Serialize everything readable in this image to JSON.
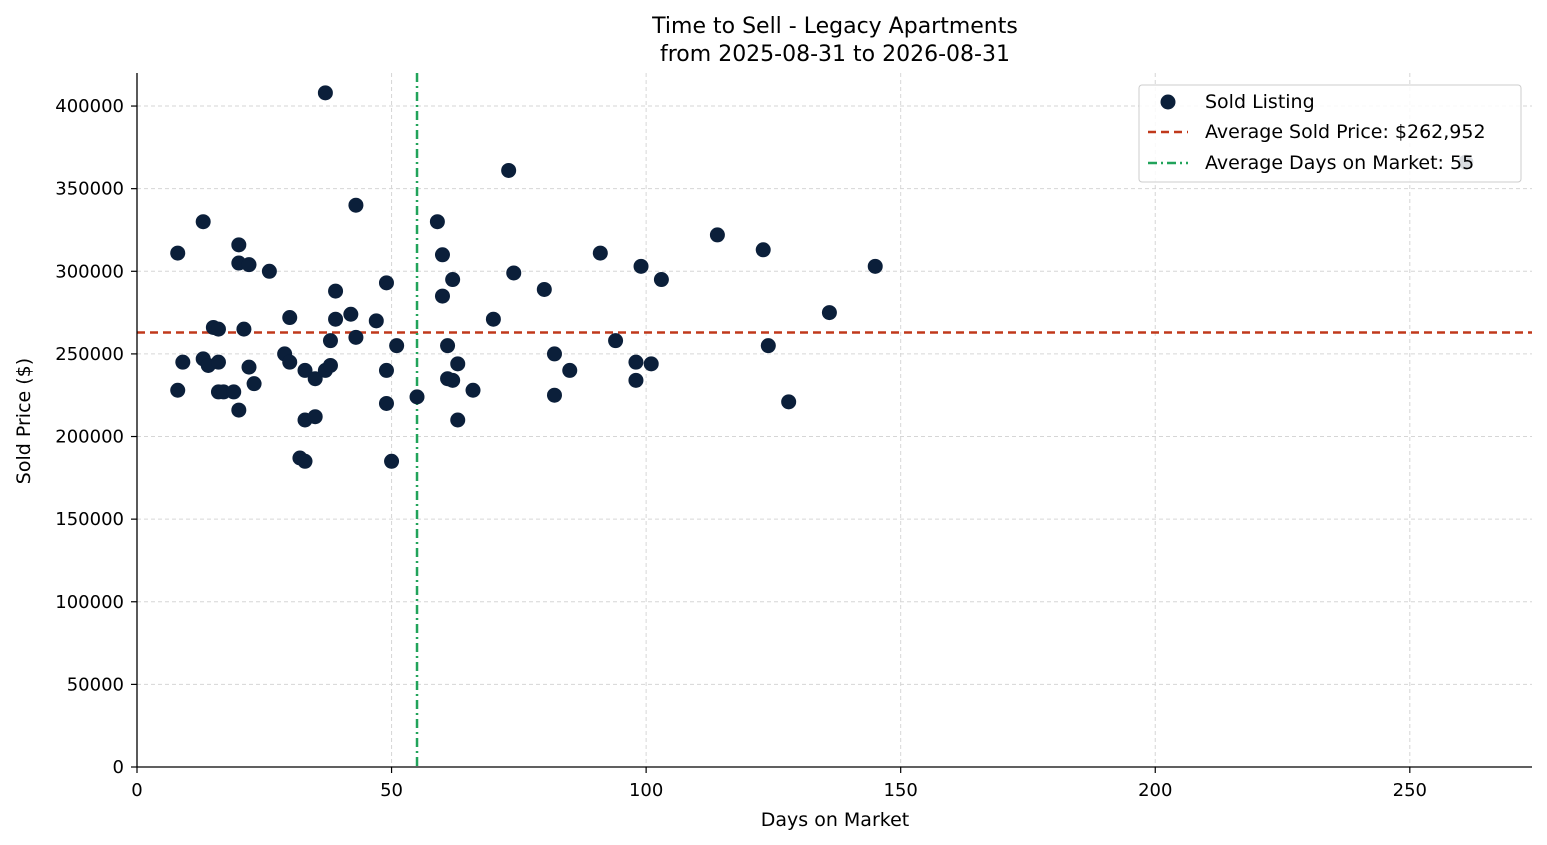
{
  "colors": {
    "points": "#0b1f3a",
    "avg_price_line": "#c0391b",
    "avg_days_line": "#21a35a",
    "grid": "#d6d6d6",
    "axis": "#000000"
  },
  "chart_data": {
    "type": "scatter",
    "title": "Time to Sell - Legacy Apartments",
    "subtitle": "from 2025-08-31 to 2026-08-31",
    "xlabel": "Days on Market",
    "ylabel": "Sold Price ($)",
    "xlim": [
      0,
      274
    ],
    "ylim": [
      0,
      420000
    ],
    "xticks": [
      0,
      50,
      100,
      150,
      200,
      250
    ],
    "yticks": [
      0,
      50000,
      100000,
      150000,
      200000,
      250000,
      300000,
      350000,
      400000
    ],
    "grid": true,
    "legend_position": "top-right",
    "legend": {
      "points_label": "Sold Listing",
      "avg_price_label": "Average Sold Price: $262,952",
      "avg_days_label": "Average Days on Market: 55"
    },
    "average_sold_price": 262952,
    "average_days_on_market": 55,
    "series": [
      {
        "name": "Sold Listing",
        "points": [
          [
            8,
            311000
          ],
          [
            8,
            228000
          ],
          [
            9,
            245000
          ],
          [
            13,
            330000
          ],
          [
            13,
            247000
          ],
          [
            14,
            243000
          ],
          [
            15,
            266000
          ],
          [
            16,
            265000
          ],
          [
            16,
            245000
          ],
          [
            16,
            227000
          ],
          [
            17,
            227000
          ],
          [
            19,
            227000
          ],
          [
            20,
            316000
          ],
          [
            20,
            305000
          ],
          [
            20,
            216000
          ],
          [
            21,
            265000
          ],
          [
            22,
            304000
          ],
          [
            22,
            242000
          ],
          [
            23,
            232000
          ],
          [
            26,
            300000
          ],
          [
            29,
            250000
          ],
          [
            30,
            272000
          ],
          [
            30,
            245000
          ],
          [
            32,
            187000
          ],
          [
            33,
            185000
          ],
          [
            33,
            210000
          ],
          [
            33,
            240000
          ],
          [
            35,
            235000
          ],
          [
            35,
            212000
          ],
          [
            37,
            240000
          ],
          [
            37,
            408000
          ],
          [
            38,
            258000
          ],
          [
            38,
            243000
          ],
          [
            39,
            288000
          ],
          [
            39,
            271000
          ],
          [
            42,
            274000
          ],
          [
            43,
            260000
          ],
          [
            43,
            340000
          ],
          [
            47,
            270000
          ],
          [
            49,
            293000
          ],
          [
            49,
            240000
          ],
          [
            49,
            220000
          ],
          [
            50,
            185000
          ],
          [
            51,
            255000
          ],
          [
            55,
            224000
          ],
          [
            59,
            330000
          ],
          [
            60,
            310000
          ],
          [
            60,
            285000
          ],
          [
            61,
            255000
          ],
          [
            61,
            235000
          ],
          [
            62,
            295000
          ],
          [
            62,
            234000
          ],
          [
            63,
            244000
          ],
          [
            63,
            210000
          ],
          [
            66,
            228000
          ],
          [
            70,
            271000
          ],
          [
            73,
            361000
          ],
          [
            74,
            299000
          ],
          [
            80,
            289000
          ],
          [
            82,
            250000
          ],
          [
            82,
            225000
          ],
          [
            85,
            240000
          ],
          [
            91,
            311000
          ],
          [
            94,
            258000
          ],
          [
            98,
            245000
          ],
          [
            98,
            234000
          ],
          [
            99,
            303000
          ],
          [
            101,
            244000
          ],
          [
            103,
            295000
          ],
          [
            114,
            322000
          ],
          [
            123,
            313000
          ],
          [
            124,
            255000
          ],
          [
            128,
            221000
          ],
          [
            136,
            275000
          ],
          [
            145,
            303000
          ],
          [
            261,
            366000
          ]
        ]
      }
    ]
  }
}
